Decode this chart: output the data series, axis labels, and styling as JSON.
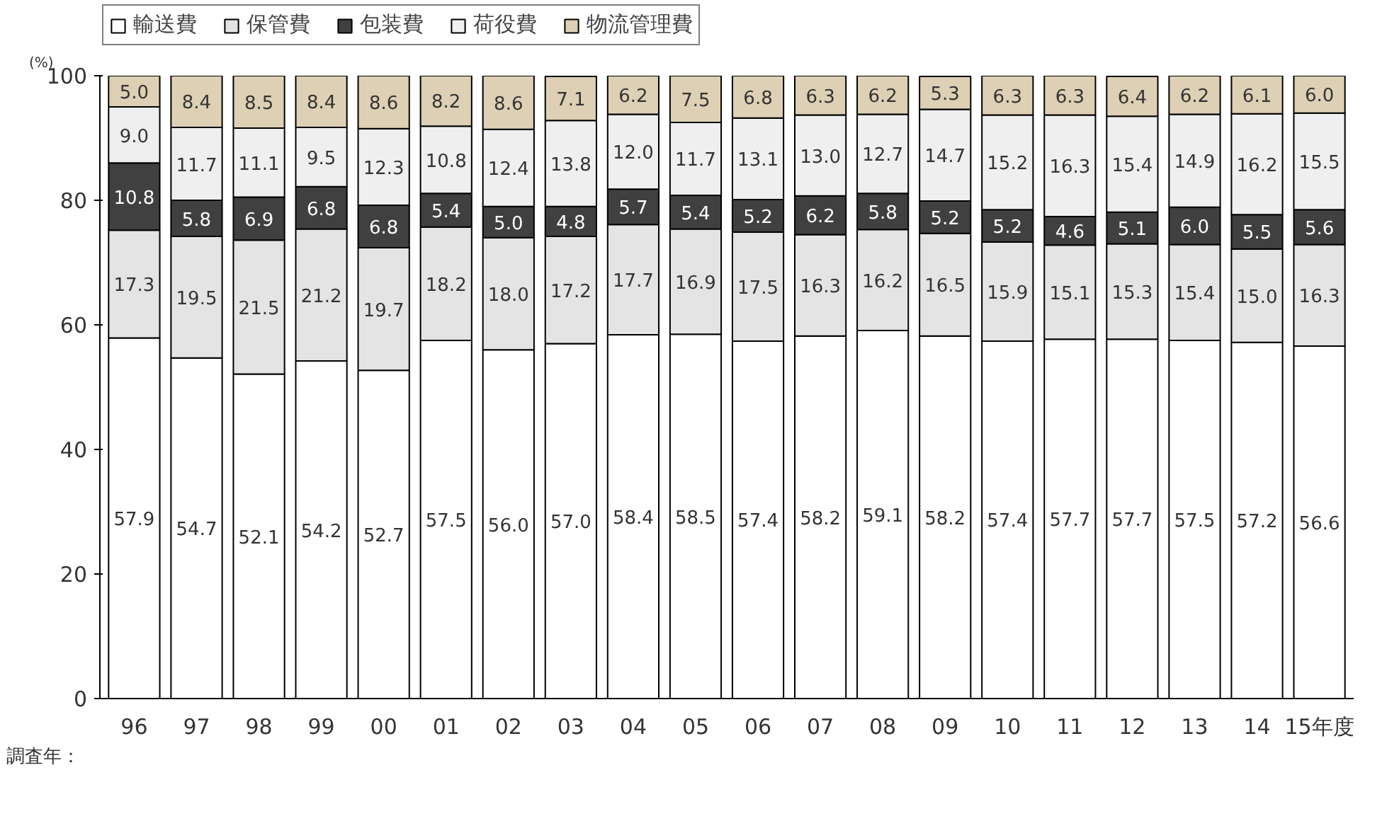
{
  "chart_data": {
    "type": "bar",
    "stacked": true,
    "xlabel": "調査年：",
    "ylabel": "(%)",
    "categories": [
      "96",
      "97",
      "98",
      "99",
      "00",
      "01",
      "02",
      "03",
      "04",
      "05",
      "06",
      "07",
      "08",
      "09",
      "10",
      "11",
      "12",
      "13",
      "14",
      "15年度"
    ],
    "ylim": [
      0,
      100
    ],
    "yticks": [
      0,
      20,
      40,
      60,
      80,
      100
    ],
    "legend": "top",
    "series": [
      {
        "name": "輸送費",
        "color": "#ffffff",
        "values": [
          57.9,
          54.7,
          52.1,
          54.2,
          52.7,
          57.5,
          56.0,
          57.0,
          58.4,
          58.5,
          57.4,
          58.2,
          59.1,
          58.2,
          57.4,
          57.7,
          57.7,
          57.5,
          57.2,
          56.6
        ],
        "value_labels": [
          "57.9",
          "54.7",
          "52.1",
          "54.2",
          "52.7",
          "57.5",
          "56.0",
          "57.0",
          "58.4",
          "58.5",
          "57.4",
          "58.2",
          "59.1",
          "58.2",
          "57.4",
          "57.7",
          "57.7",
          "57.5",
          "57.2",
          "56.6"
        ]
      },
      {
        "name": "保管費",
        "color": "#e4e4e4",
        "values": [
          17.3,
          19.5,
          21.5,
          21.2,
          19.7,
          18.2,
          18.0,
          17.2,
          17.7,
          16.9,
          17.5,
          16.3,
          16.2,
          16.5,
          15.9,
          15.1,
          15.3,
          15.4,
          15.0,
          16.3
        ],
        "value_labels": [
          "17.3",
          "19.5",
          "21.5",
          "21.2",
          "19.7",
          "18.2",
          "18.0",
          "17.2",
          "17.7",
          "16.9",
          "17.5",
          "16.3",
          "16.2",
          "16.5",
          "15.9",
          "15.1",
          "15.3",
          "15.4",
          "15.0",
          "16.3"
        ]
      },
      {
        "name": "包装費",
        "color": "#404040",
        "values": [
          10.8,
          5.8,
          6.9,
          6.8,
          6.8,
          5.4,
          5.0,
          4.8,
          5.7,
          5.4,
          5.2,
          6.2,
          5.8,
          5.2,
          5.2,
          4.6,
          5.1,
          6.0,
          5.5,
          5.6
        ],
        "value_labels": [
          "10.8",
          "5.8",
          "6.9",
          "6.8",
          "6.8",
          "5.4",
          "5.0",
          "4.8",
          "5.7",
          "5.4",
          "5.2",
          "6.2",
          "5.8",
          "5.2",
          "5.2",
          "4.6",
          "5.1",
          "6.0",
          "5.5",
          "5.6"
        ]
      },
      {
        "name": "荷役費",
        "color": "#efefef",
        "values": [
          9.0,
          11.7,
          11.1,
          9.5,
          12.3,
          10.8,
          12.4,
          13.8,
          12.0,
          11.7,
          13.1,
          13.0,
          12.7,
          14.7,
          15.2,
          16.3,
          15.4,
          14.9,
          16.2,
          15.5
        ],
        "value_labels": [
          "9.0",
          "11.7",
          "11.1",
          "9.5",
          "12.3",
          "10.8",
          "12.4",
          "13.8",
          "12.0",
          "11.7",
          "13.1",
          "13.0",
          "12.7",
          "14.7",
          "15.2",
          "16.3",
          "15.4",
          "14.9",
          "16.2",
          "15.5"
        ]
      },
      {
        "name": "物流管理費",
        "color": "#ddd0b4",
        "values": [
          5.0,
          8.4,
          8.5,
          8.4,
          8.6,
          8.2,
          8.6,
          7.1,
          6.2,
          7.5,
          6.8,
          6.3,
          6.2,
          5.3,
          6.3,
          6.3,
          6.4,
          6.2,
          6.1,
          6.0
        ],
        "value_labels": [
          "5.0",
          "8.4",
          "8.5",
          "8.4",
          "8.6",
          "8.2",
          "8.6",
          "7.1",
          "6.2",
          "7.5",
          "6.8",
          "6.3",
          "6.2",
          "5.3",
          "6.3",
          "6.3",
          "6.4",
          "6.2",
          "6.1",
          "6.0"
        ]
      }
    ]
  }
}
